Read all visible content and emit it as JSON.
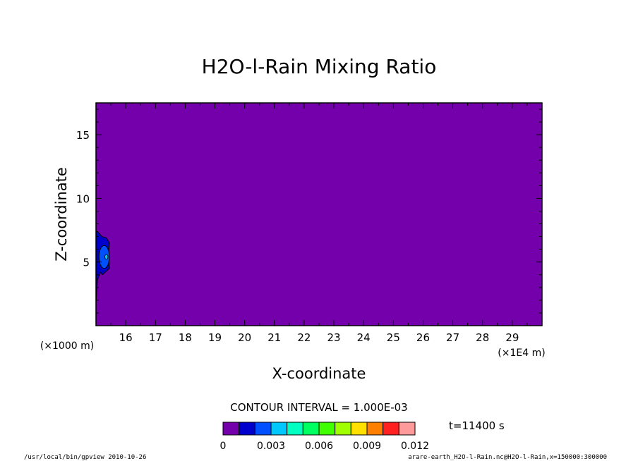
{
  "chart_data": {
    "type": "contour",
    "title": "H2O-l-Rain Mixing Ratio",
    "xlabel": "X-coordinate",
    "ylabel": "Z-coordinate",
    "x_unit_left": "(×1000 m)",
    "x_unit_right": "(×1E4 m)",
    "xlim": [
      15,
      30
    ],
    "ylim": [
      0,
      17.5
    ],
    "x_ticks": [
      16,
      17,
      18,
      19,
      20,
      21,
      22,
      23,
      24,
      25,
      26,
      27,
      28,
      29
    ],
    "y_ticks": [
      5,
      10,
      15
    ],
    "background_value_color": "#7300aa",
    "contour_interval_text": "CONTOUR INTERVAL = 1.000E-03",
    "time_text": "t=11400 s",
    "colorbar": {
      "colors": [
        "#7300aa",
        "#0000cc",
        "#0050ff",
        "#00c8ff",
        "#00ffc0",
        "#00ff60",
        "#40ff00",
        "#a0ff00",
        "#ffe000",
        "#ff8000",
        "#ff2020",
        "#ff9a9a"
      ],
      "labels": [
        "0",
        "0.003",
        "0.006",
        "0.009",
        "0.012"
      ],
      "label_values": [
        0,
        0.003,
        0.006,
        0.009,
        0.012
      ]
    },
    "features": [
      {
        "level": 0.001,
        "color": "#0000cc",
        "x_range": [
          15.0,
          15.45
        ],
        "z_range": [
          1.8,
          7.4
        ]
      },
      {
        "level": 0.002,
        "color": "#0050ff",
        "x_range": [
          15.1,
          15.45
        ],
        "z_range": [
          4.5,
          6.3
        ]
      },
      {
        "level": 0.003,
        "color": "#00c8ff",
        "x_center": 15.35,
        "z_center": 5.4
      }
    ]
  },
  "footer": {
    "left": "/usr/local/bin/gpview  2010-10-26",
    "right": "arare-earth_H2O-l-Rain.nc@H2O-l-Rain,x=150000:300000"
  }
}
